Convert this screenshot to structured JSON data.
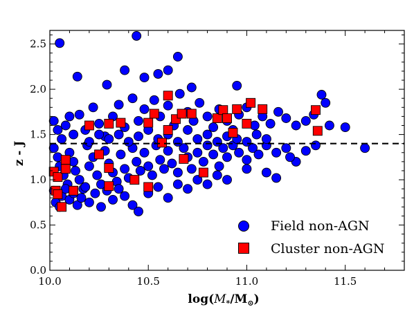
{
  "chart_data": {
    "type": "scatter",
    "xlabel": "log(M*/M⊙)",
    "ylabel": "z - J",
    "xlim": [
      10.0,
      11.8
    ],
    "ylim": [
      0.0,
      2.65
    ],
    "xticks": [
      "10.0",
      "10.5",
      "11.0",
      "11.5"
    ],
    "xtick_values": [
      10.0,
      10.5,
      11.0,
      11.5
    ],
    "yticks": [
      "0.0",
      "0.5",
      "1.0",
      "1.5",
      "2.0",
      "2.5"
    ],
    "ytick_values": [
      0.0,
      0.5,
      1.0,
      1.5,
      2.0,
      2.5
    ],
    "reference_line": {
      "y": 1.4,
      "style": "dashed"
    },
    "legend_position": "lower-right",
    "series": [
      {
        "name": "Field non-AGN",
        "marker": "circle",
        "color": "#0000ff",
        "points": [
          [
            10.05,
            2.51
          ],
          [
            10.44,
            2.59
          ],
          [
            10.65,
            2.36
          ],
          [
            10.14,
            2.14
          ],
          [
            10.38,
            2.21
          ],
          [
            10.48,
            2.13
          ],
          [
            10.55,
            2.17
          ],
          [
            10.6,
            2.21
          ],
          [
            10.29,
            2.05
          ],
          [
            10.72,
            2.02
          ],
          [
            10.95,
            2.04
          ],
          [
            11.38,
            1.94
          ],
          [
            11.5,
            1.58
          ],
          [
            11.6,
            1.35
          ],
          [
            10.02,
            1.65
          ],
          [
            10.04,
            1.55
          ],
          [
            10.06,
            1.45
          ],
          [
            10.08,
            1.6
          ],
          [
            10.1,
            1.7
          ],
          [
            10.12,
            1.5
          ],
          [
            10.15,
            1.72
          ],
          [
            10.18,
            1.55
          ],
          [
            10.22,
            1.8
          ],
          [
            10.25,
            1.62
          ],
          [
            10.28,
            1.48
          ],
          [
            10.32,
            1.7
          ],
          [
            10.35,
            1.83
          ],
          [
            10.38,
            1.58
          ],
          [
            10.42,
            1.9
          ],
          [
            10.45,
            1.65
          ],
          [
            10.48,
            1.78
          ],
          [
            10.5,
            1.55
          ],
          [
            10.53,
            1.88
          ],
          [
            10.56,
            1.7
          ],
          [
            10.6,
            1.82
          ],
          [
            10.63,
            1.6
          ],
          [
            10.66,
            1.95
          ],
          [
            10.7,
            1.75
          ],
          [
            10.73,
            1.65
          ],
          [
            10.76,
            1.85
          ],
          [
            10.8,
            1.7
          ],
          [
            10.83,
            1.58
          ],
          [
            10.86,
            1.78
          ],
          [
            10.9,
            1.65
          ],
          [
            10.93,
            1.55
          ],
          [
            10.96,
            1.72
          ],
          [
            11.0,
            1.8
          ],
          [
            11.04,
            1.6
          ],
          [
            11.08,
            1.7
          ],
          [
            11.12,
            1.62
          ],
          [
            11.16,
            1.75
          ],
          [
            11.2,
            1.68
          ],
          [
            11.25,
            1.6
          ],
          [
            11.3,
            1.65
          ],
          [
            11.34,
            1.72
          ],
          [
            11.4,
            1.85
          ],
          [
            11.42,
            1.6
          ],
          [
            10.02,
            1.35
          ],
          [
            10.04,
            1.25
          ],
          [
            10.05,
            1.15
          ],
          [
            10.07,
            1.05
          ],
          [
            10.09,
            0.95
          ],
          [
            10.1,
            1.3
          ],
          [
            10.12,
            1.2
          ],
          [
            10.13,
            1.1
          ],
          [
            10.15,
            1.0
          ],
          [
            10.17,
            0.9
          ],
          [
            10.19,
            1.38
          ],
          [
            10.2,
            1.15
          ],
          [
            10.22,
            1.25
          ],
          [
            10.24,
            1.05
          ],
          [
            10.26,
            0.95
          ],
          [
            10.28,
            1.32
          ],
          [
            10.3,
            1.18
          ],
          [
            10.32,
            1.08
          ],
          [
            10.34,
            0.98
          ],
          [
            10.36,
            1.28
          ],
          [
            10.38,
            1.12
          ],
          [
            10.4,
            1.02
          ],
          [
            10.42,
            1.35
          ],
          [
            10.44,
            1.2
          ],
          [
            10.46,
            1.1
          ],
          [
            10.48,
            1.3
          ],
          [
            10.5,
            1.15
          ],
          [
            10.52,
            1.05
          ],
          [
            10.54,
            1.38
          ],
          [
            10.56,
            1.22
          ],
          [
            10.58,
            1.12
          ],
          [
            10.6,
            1.32
          ],
          [
            10.62,
            1.18
          ],
          [
            10.65,
            1.08
          ],
          [
            10.68,
            1.35
          ],
          [
            10.7,
            1.25
          ],
          [
            10.72,
            1.12
          ],
          [
            10.75,
            1.3
          ],
          [
            10.78,
            1.2
          ],
          [
            10.8,
            1.38
          ],
          [
            10.83,
            1.28
          ],
          [
            10.86,
            1.15
          ],
          [
            10.88,
            1.35
          ],
          [
            10.9,
            1.25
          ],
          [
            10.93,
            1.38
          ],
          [
            10.96,
            1.3
          ],
          [
            11.0,
            1.22
          ],
          [
            11.03,
            1.35
          ],
          [
            11.06,
            1.28
          ],
          [
            11.1,
            1.38
          ],
          [
            11.15,
            1.3
          ],
          [
            11.2,
            1.35
          ],
          [
            11.25,
            1.2
          ],
          [
            11.3,
            1.32
          ],
          [
            11.35,
            1.38
          ],
          [
            10.02,
            0.88
          ],
          [
            10.03,
            0.75
          ],
          [
            10.05,
            0.7
          ],
          [
            10.06,
            0.82
          ],
          [
            10.08,
            0.9
          ],
          [
            10.1,
            0.78
          ],
          [
            10.12,
            0.85
          ],
          [
            10.14,
            0.72
          ],
          [
            10.16,
            0.8
          ],
          [
            10.18,
            0.92
          ],
          [
            10.2,
            0.75
          ],
          [
            10.23,
            0.85
          ],
          [
            10.26,
            0.7
          ],
          [
            10.29,
            0.88
          ],
          [
            10.32,
            0.78
          ],
          [
            10.35,
            0.9
          ],
          [
            10.38,
            0.82
          ],
          [
            10.42,
            0.72
          ],
          [
            10.45,
            0.65
          ],
          [
            10.5,
            0.85
          ],
          [
            10.55,
            0.92
          ],
          [
            10.6,
            0.8
          ],
          [
            10.65,
            0.95
          ],
          [
            10.7,
            0.9
          ],
          [
            10.75,
            1.0
          ],
          [
            10.8,
            0.95
          ],
          [
            10.85,
            1.05
          ],
          [
            10.9,
            1.0
          ],
          [
            11.0,
            1.12
          ],
          [
            11.1,
            1.08
          ],
          [
            11.15,
            1.02
          ],
          [
            11.22,
            1.25
          ],
          [
            10.55,
            1.45
          ],
          [
            10.6,
            1.5
          ],
          [
            10.65,
            1.42
          ],
          [
            10.7,
            1.55
          ],
          [
            10.75,
            1.45
          ],
          [
            10.8,
            1.5
          ],
          [
            10.85,
            1.42
          ],
          [
            10.9,
            1.48
          ],
          [
            10.95,
            1.45
          ],
          [
            11.0,
            1.42
          ],
          [
            11.05,
            1.5
          ],
          [
            11.1,
            1.45
          ],
          [
            10.3,
            1.45
          ],
          [
            10.35,
            1.5
          ],
          [
            10.4,
            1.42
          ],
          [
            10.45,
            1.48
          ],
          [
            10.2,
            1.42
          ],
          [
            10.25,
            1.5
          ]
        ]
      },
      {
        "name": "Cluster non-AGN",
        "marker": "square",
        "color": "#ff0000",
        "points": [
          [
            10.02,
            1.09
          ],
          [
            10.04,
            1.03
          ],
          [
            10.03,
            0.88
          ],
          [
            10.04,
            0.84
          ],
          [
            10.06,
            0.7
          ],
          [
            10.08,
            1.22
          ],
          [
            10.08,
            1.12
          ],
          [
            10.12,
            0.88
          ],
          [
            10.2,
            1.6
          ],
          [
            10.25,
            1.28
          ],
          [
            10.3,
            1.62
          ],
          [
            10.3,
            1.13
          ],
          [
            10.3,
            0.93
          ],
          [
            10.36,
            1.63
          ],
          [
            10.43,
            1.0
          ],
          [
            10.5,
            1.63
          ],
          [
            10.5,
            0.92
          ],
          [
            10.53,
            1.73
          ],
          [
            10.57,
            1.41
          ],
          [
            10.6,
            1.93
          ],
          [
            10.6,
            1.55
          ],
          [
            10.64,
            1.67
          ],
          [
            10.67,
            1.73
          ],
          [
            10.68,
            1.23
          ],
          [
            10.72,
            1.73
          ],
          [
            10.78,
            1.08
          ],
          [
            10.85,
            1.68
          ],
          [
            10.88,
            1.77
          ],
          [
            10.9,
            1.68
          ],
          [
            10.93,
            1.52
          ],
          [
            10.95,
            1.78
          ],
          [
            11.0,
            1.62
          ],
          [
            11.02,
            1.85
          ],
          [
            11.08,
            1.78
          ],
          [
            11.35,
            1.77
          ],
          [
            11.36,
            1.54
          ]
        ]
      }
    ]
  },
  "legend": {
    "field_label": "Field non-AGN",
    "cluster_label": "Cluster non-AGN"
  },
  "colors": {
    "field": "#0000ff",
    "cluster": "#ff0000",
    "outline": "#000000"
  }
}
